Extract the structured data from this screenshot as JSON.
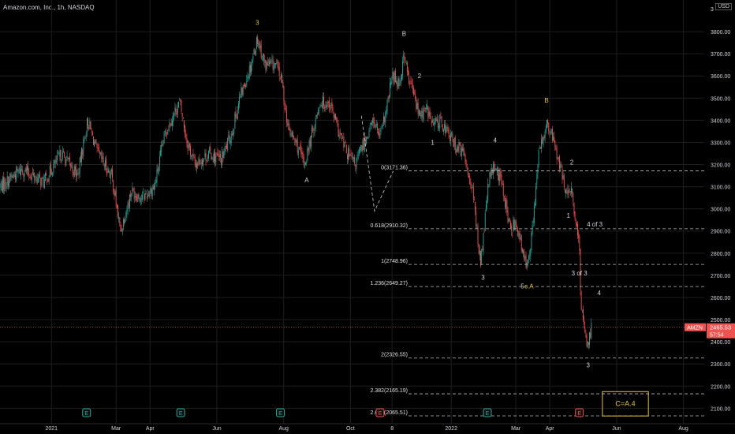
{
  "header": {
    "title": "Amazon.com, Inc., 1h, NASDAQ"
  },
  "currency_button": "USD",
  "colors": {
    "up": "#26a69a",
    "down": "#ef5350",
    "level_line": "#bdbdbd",
    "grid": "#1e1e1e",
    "price_tag": "#ef5350",
    "wave_yellow": "#e3c33a"
  },
  "chart_data": {
    "type": "candlestick",
    "symbol": "AMZN",
    "ylim": [
      2030,
      3900
    ],
    "y_ticks": [
      2100,
      2200,
      2300,
      2400,
      2500,
      2600,
      2700,
      2800,
      2900,
      3000,
      3100,
      3200,
      3300,
      3400,
      3500,
      3600,
      3700,
      3800
    ],
    "y_tick_labels": [
      "2100.00",
      "2200.00",
      "2300.00",
      "2400.00",
      "2500.00",
      "2600.00",
      "2700.00",
      "2800.00",
      "2900.00",
      "3000.00",
      "3100.00",
      "3200.00",
      "3300.00",
      "3400.00",
      "3500.00",
      "3600.00",
      "3700.00",
      "3800.00"
    ],
    "top_partial_label": "3",
    "x_range": [
      "2020-11-15",
      "2022-08-20"
    ],
    "x_ticks": [
      {
        "label": "2021",
        "date": "2021-01-01"
      },
      {
        "label": "Mar",
        "date": "2021-03-01"
      },
      {
        "label": "Apr",
        "date": "2021-04-01"
      },
      {
        "label": "Jun",
        "date": "2021-06-01"
      },
      {
        "label": "Aug",
        "date": "2021-08-01"
      },
      {
        "label": "Oct",
        "date": "2021-10-01"
      },
      {
        "label": "8",
        "date": "2021-11-08"
      },
      {
        "label": "2022",
        "date": "2022-01-01"
      },
      {
        "label": "Mar",
        "date": "2022-03-01"
      },
      {
        "label": "Apr",
        "date": "2022-04-01"
      },
      {
        "label": "Jun",
        "date": "2022-06-01"
      },
      {
        "label": "Aug",
        "date": "2022-08-01"
      }
    ],
    "price_path": [
      [
        "2020-11-15",
        3100
      ],
      [
        "2020-12-05",
        3180
      ],
      [
        "2020-12-25",
        3120
      ],
      [
        "2021-01-10",
        3250
      ],
      [
        "2021-01-25",
        3150
      ],
      [
        "2021-02-03",
        3400
      ],
      [
        "2021-02-12",
        3250
      ],
      [
        "2021-02-25",
        3150
      ],
      [
        "2021-03-05",
        2900
      ],
      [
        "2021-03-15",
        3080
      ],
      [
        "2021-03-25",
        3050
      ],
      [
        "2021-04-05",
        3100
      ],
      [
        "2021-04-15",
        3350
      ],
      [
        "2021-04-28",
        3480
      ],
      [
        "2021-05-05",
        3300
      ],
      [
        "2021-05-12",
        3200
      ],
      [
        "2021-05-25",
        3250
      ],
      [
        "2021-06-05",
        3220
      ],
      [
        "2021-06-15",
        3350
      ],
      [
        "2021-06-22",
        3500
      ],
      [
        "2021-07-02",
        3650
      ],
      [
        "2021-07-08",
        3770
      ],
      [
        "2021-07-15",
        3650
      ],
      [
        "2021-07-25",
        3650
      ],
      [
        "2021-07-29",
        3600
      ],
      [
        "2021-07-31",
        3550
      ],
      [
        "2021-08-05",
        3360
      ],
      [
        "2021-08-12",
        3300
      ],
      [
        "2021-08-20",
        3200
      ],
      [
        "2021-08-25",
        3300
      ],
      [
        "2021-09-03",
        3480
      ],
      [
        "2021-09-12",
        3480
      ],
      [
        "2021-09-20",
        3350
      ],
      [
        "2021-09-28",
        3250
      ],
      [
        "2021-10-05",
        3200
      ],
      [
        "2021-10-15",
        3320
      ],
      [
        "2021-10-22",
        3400
      ],
      [
        "2021-10-28",
        3320
      ],
      [
        "2021-11-03",
        3450
      ],
      [
        "2021-11-08",
        3600
      ],
      [
        "2021-11-15",
        3570
      ],
      [
        "2021-11-19",
        3700
      ],
      [
        "2021-11-23",
        3580
      ],
      [
        "2021-11-26",
        3550
      ],
      [
        "2021-12-03",
        3420
      ],
      [
        "2021-12-10",
        3450
      ],
      [
        "2021-12-15",
        3380
      ],
      [
        "2021-12-22",
        3400
      ],
      [
        "2022-01-03",
        3300
      ],
      [
        "2022-01-12",
        3250
      ],
      [
        "2022-01-20",
        3100
      ],
      [
        "2022-01-28",
        2750
      ],
      [
        "2022-02-04",
        3120
      ],
      [
        "2022-02-10",
        3200
      ],
      [
        "2022-02-17",
        3100
      ],
      [
        "2022-02-24",
        2900
      ],
      [
        "2022-03-01",
        2950
      ],
      [
        "2022-03-07",
        2800
      ],
      [
        "2022-03-10",
        2750
      ],
      [
        "2022-03-15",
        2850
      ],
      [
        "2022-03-22",
        3250
      ],
      [
        "2022-03-29",
        3380
      ],
      [
        "2022-04-05",
        3300
      ],
      [
        "2022-04-12",
        3150
      ],
      [
        "2022-04-18",
        3050
      ],
      [
        "2022-04-21",
        3080
      ],
      [
        "2022-04-25",
        2920
      ],
      [
        "2022-04-28",
        2820
      ],
      [
        "2022-04-29",
        2600
      ],
      [
        "2022-05-03",
        2450
      ],
      [
        "2022-05-06",
        2380
      ],
      [
        "2022-05-09",
        2480
      ]
    ],
    "fib_levels": [
      {
        "label": "0(3171.36)",
        "value": 3171.36
      },
      {
        "label": "0.618(2910.32)",
        "value": 2910.32
      },
      {
        "label": "1(2748.96)",
        "value": 2748.96
      },
      {
        "label": "1.236(2649.27)",
        "value": 2649.27
      },
      {
        "label": "2(2326.55)",
        "value": 2326.55
      },
      {
        "label": "2.382(2165.19)",
        "value": 2165.19
      },
      {
        "label": "2.618(2065.51)",
        "value": 2065.51
      }
    ],
    "fib_start_date": "2021-10-18",
    "wave_labels": [
      {
        "text": "3",
        "date": "2021-07-08",
        "price": 3830,
        "color": "#e3c33a"
      },
      {
        "text": "A",
        "date": "2021-08-22",
        "price": 3120,
        "color": "#d1d4dc"
      },
      {
        "text": "B",
        "date": "2021-11-19",
        "price": 3780,
        "color": "#d1d4dc"
      },
      {
        "text": "2",
        "date": "2021-12-03",
        "price": 3590,
        "color": "#d1d4dc"
      },
      {
        "text": "1",
        "date": "2021-12-15",
        "price": 3290,
        "color": "#d1d4dc"
      },
      {
        "text": "4",
        "date": "2022-02-10",
        "price": 3300,
        "color": "#d1d4dc"
      },
      {
        "text": "3",
        "date": "2022-01-30",
        "price": 2680,
        "color": "#d1d4dc"
      },
      {
        "text": "5",
        "date": "2022-03-07",
        "price": 2640,
        "color": "#d1d4dc"
      },
      {
        "text": "c.A",
        "date": "2022-03-13",
        "price": 2640,
        "color": "#e3c33a"
      },
      {
        "text": "B",
        "date": "2022-03-29",
        "price": 3480,
        "color": "#e3c33a"
      },
      {
        "text": "2",
        "date": "2022-04-21",
        "price": 3200,
        "color": "#d1d4dc"
      },
      {
        "text": "1",
        "date": "2022-04-18",
        "price": 2960,
        "color": "#d1d4dc"
      },
      {
        "text": "4 of 3",
        "date": "2022-05-12",
        "price": 2920,
        "color": "#d1d4dc"
      },
      {
        "text": "3 of 3",
        "date": "2022-04-28",
        "price": 2700,
        "color": "#d1d4dc"
      },
      {
        "text": "4",
        "date": "2022-05-16",
        "price": 2610,
        "color": "#d1d4dc"
      },
      {
        "text": "3",
        "date": "2022-05-06",
        "price": 2285,
        "color": "#d1d4dc"
      }
    ],
    "dashed_path": [
      [
        "2021-10-11",
        3420
      ],
      [
        "2021-10-23",
        2990
      ],
      [
        "2021-11-09",
        3170
      ]
    ],
    "earnings_markers": [
      {
        "date": "2021-02-02",
        "label": "E",
        "color": "#26a69a"
      },
      {
        "date": "2021-04-29",
        "label": "E",
        "color": "#26a69a"
      },
      {
        "date": "2021-07-29",
        "label": "E",
        "color": "#26a69a"
      },
      {
        "date": "2021-10-28",
        "label": "E",
        "color": "#ef5350"
      },
      {
        "date": "2022-02-03",
        "label": "E",
        "color": "#26a69a"
      },
      {
        "date": "2022-04-28",
        "label": "E",
        "color": "#ef5350"
      }
    ],
    "last_price": {
      "value": 2465.53,
      "label": "2465.53",
      "countdown": "57:54",
      "ticker": "AMZN"
    },
    "annotation_box": {
      "text": "C=A.4",
      "price_top": 2175,
      "price_bottom": 2065,
      "date_left": "2022-05-19",
      "date_right": "2022-06-30"
    }
  }
}
